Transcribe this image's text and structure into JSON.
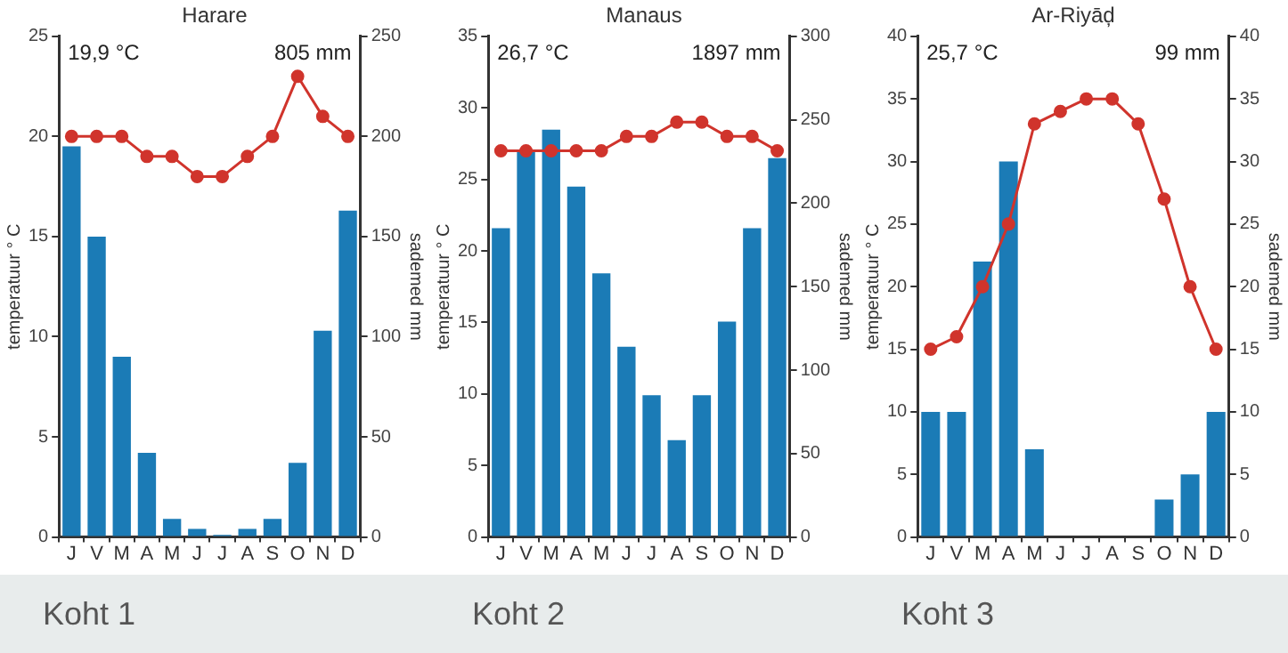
{
  "chart_data": [
    {
      "type": "bar",
      "title": "Harare",
      "ylabel": "temperatuur ° C",
      "y2label": "sademed mm",
      "categories": [
        "J",
        "V",
        "M",
        "A",
        "M",
        "J",
        "J",
        "A",
        "S",
        "O",
        "N",
        "D"
      ],
      "series": [
        {
          "axis": "y2",
          "color": "#1b7bb6",
          "values": [
            195,
            150,
            90,
            42,
            9,
            4,
            1,
            4,
            9,
            37,
            103,
            163
          ]
        },
        {
          "type": "line",
          "axis": "y",
          "color": "#d0342c",
          "values": [
            20,
            20,
            20,
            19,
            19,
            18,
            18,
            19,
            20,
            23,
            21,
            20
          ]
        }
      ],
      "ylim": [
        0,
        25
      ],
      "yticks": [
        0,
        5,
        10,
        15,
        20,
        25
      ],
      "y2lim": [
        0,
        250
      ],
      "y2ticks": [
        0,
        50,
        100,
        150,
        200,
        250
      ],
      "annotations": [
        "19,9 °C",
        "805 mm",
        "Koht 1"
      ],
      "grid": false,
      "legend": false,
      "marker": "circle",
      "line_style": "solid"
    },
    {
      "type": "bar",
      "title": "Manaus",
      "ylabel": "temperatuur ° C",
      "y2label": "sademed mm",
      "categories": [
        "J",
        "V",
        "M",
        "A",
        "M",
        "J",
        "J",
        "A",
        "S",
        "O",
        "N",
        "D"
      ],
      "series": [
        {
          "axis": "y2",
          "color": "#1b7bb6",
          "values": [
            185,
            231,
            244,
            210,
            158,
            114,
            85,
            58,
            85,
            129,
            185,
            227
          ]
        },
        {
          "type": "line",
          "axis": "y",
          "color": "#d0342c",
          "values": [
            27,
            27,
            27,
            27,
            27,
            28,
            28,
            29,
            29,
            28,
            28,
            27
          ]
        }
      ],
      "ylim": [
        0,
        35
      ],
      "yticks": [
        0,
        5,
        10,
        15,
        20,
        25,
        30,
        35
      ],
      "y2lim": [
        0,
        300
      ],
      "y2ticks": [
        0,
        50,
        100,
        150,
        200,
        250,
        300
      ],
      "annotations": [
        "26,7 °C",
        "1897 mm",
        "Koht 2"
      ],
      "grid": false,
      "legend": false,
      "marker": "circle",
      "line_style": "solid"
    },
    {
      "type": "bar",
      "title": "Ar-Riyāḑ",
      "ylabel": "temperatuur ° C",
      "y2label": "sademed mm",
      "categories": [
        "J",
        "V",
        "M",
        "A",
        "M",
        "J",
        "J",
        "A",
        "S",
        "O",
        "N",
        "D"
      ],
      "series": [
        {
          "axis": "y2",
          "color": "#1b7bb6",
          "values": [
            10,
            10,
            22,
            30,
            7,
            0,
            0,
            0,
            0,
            3,
            5,
            10
          ]
        },
        {
          "type": "line",
          "axis": "y",
          "color": "#d0342c",
          "values": [
            15,
            16,
            20,
            25,
            33,
            34,
            35,
            35,
            33,
            27,
            20,
            15
          ]
        }
      ],
      "ylim": [
        0,
        40
      ],
      "yticks": [
        0,
        5,
        10,
        15,
        20,
        25,
        30,
        35,
        40
      ],
      "y2lim": [
        0,
        40
      ],
      "y2ticks": [
        0,
        5,
        10,
        15,
        20,
        25,
        30,
        35,
        40
      ],
      "annotations": [
        "25,7 °C",
        "99 mm",
        "Koht 3"
      ],
      "grid": false,
      "legend": false,
      "marker": "circle",
      "line_style": "solid"
    }
  ]
}
